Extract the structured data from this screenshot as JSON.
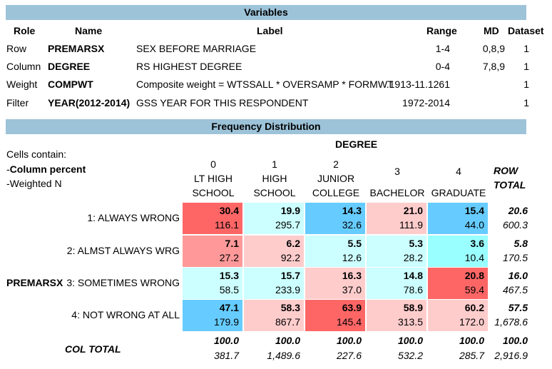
{
  "variables": {
    "title": "Variables",
    "headers": {
      "role": "Role",
      "name": "Name",
      "label": "Label",
      "range": "Range",
      "md": "MD",
      "dataset": "Dataset"
    },
    "rows": [
      {
        "role": "Row",
        "name": "PREMARSX",
        "label": "SEX BEFORE MARRIAGE",
        "range": "1-4",
        "md": "0,8,9",
        "dataset": "1"
      },
      {
        "role": "Column",
        "name": "DEGREE",
        "label": "RS HIGHEST DEGREE",
        "range": "0-4",
        "md": "7,8,9",
        "dataset": "1"
      },
      {
        "role": "Weight",
        "name": "COMPWT",
        "label": "Composite weight = WTSSALL * OVERSAMP * FORMWT",
        "range": ".1913-11.1261",
        "md": "",
        "dataset": "1"
      },
      {
        "role": "Filter",
        "name": "YEAR(2012-2014)",
        "label": "GSS YEAR FOR THIS RESPONDENT",
        "range": "1972-2014",
        "md": "",
        "dataset": "1"
      }
    ]
  },
  "freq": {
    "title": "Frequency Distribution",
    "cells_contain": "Cells contain:",
    "legend_1_dash": "-",
    "legend_1": "Column percent",
    "legend_2": "-Weighted N",
    "col_var": "DEGREE",
    "row_var": "PREMARSX",
    "columns": [
      {
        "code": "0",
        "l1": "LT HIGH",
        "l2": "SCHOOL"
      },
      {
        "code": "1",
        "l1": "HIGH",
        "l2": "SCHOOL"
      },
      {
        "code": "2",
        "l1": "JUNIOR",
        "l2": "COLLEGE"
      },
      {
        "code": "3",
        "l1": "",
        "l2": "BACHELOR"
      },
      {
        "code": "4",
        "l1": "",
        "l2": "GRADUATE"
      }
    ],
    "row_total_l1": "ROW",
    "row_total_l2": "TOTAL",
    "rows": [
      {
        "label": "1: ALWAYS WRONG",
        "cells": [
          {
            "pct": "30.4",
            "n": "116.1",
            "color": "#fe6666"
          },
          {
            "pct": "19.9",
            "n": "295.7",
            "color": "#ccffff"
          },
          {
            "pct": "14.3",
            "n": "32.6",
            "color": "#66ccff"
          },
          {
            "pct": "21.0",
            "n": "111.9",
            "color": "#ffcccc"
          },
          {
            "pct": "15.4",
            "n": "44.0",
            "color": "#66ccff"
          }
        ],
        "tot_pct": "20.6",
        "tot_n": "600.3"
      },
      {
        "label": "2: ALMST ALWAYS WRG",
        "cells": [
          {
            "pct": "7.1",
            "n": "27.2",
            "color": "#ff9999"
          },
          {
            "pct": "6.2",
            "n": "92.2",
            "color": "#ffcccc"
          },
          {
            "pct": "5.5",
            "n": "12.6",
            "color": "#ccffff"
          },
          {
            "pct": "5.3",
            "n": "28.2",
            "color": "#ccffff"
          },
          {
            "pct": "3.6",
            "n": "10.4",
            "color": "#99ffff"
          }
        ],
        "tot_pct": "5.8",
        "tot_n": "170.5"
      },
      {
        "label": "3: SOMETIMES WRONG",
        "cells": [
          {
            "pct": "15.3",
            "n": "58.5",
            "color": "#ccffff"
          },
          {
            "pct": "15.7",
            "n": "233.9",
            "color": "#ccffff"
          },
          {
            "pct": "16.3",
            "n": "37.0",
            "color": "#ffcccc"
          },
          {
            "pct": "14.8",
            "n": "78.6",
            "color": "#ccffff"
          },
          {
            "pct": "20.8",
            "n": "59.4",
            "color": "#fe6666"
          }
        ],
        "tot_pct": "16.0",
        "tot_n": "467.5"
      },
      {
        "label": "4: NOT WRONG AT ALL",
        "cells": [
          {
            "pct": "47.1",
            "n": "179.9",
            "color": "#66ccff"
          },
          {
            "pct": "58.3",
            "n": "867.7",
            "color": "#ffcccc"
          },
          {
            "pct": "63.9",
            "n": "145.4",
            "color": "#fe6666"
          },
          {
            "pct": "58.9",
            "n": "313.5",
            "color": "#ffcccc"
          },
          {
            "pct": "60.2",
            "n": "172.0",
            "color": "#ffcccc"
          }
        ],
        "tot_pct": "57.5",
        "tot_n": "1,678.6"
      }
    ],
    "col_total": {
      "label": "COL TOTAL",
      "cells": [
        {
          "pct": "100.0",
          "n": "381.7"
        },
        {
          "pct": "100.0",
          "n": "1,489.6"
        },
        {
          "pct": "100.0",
          "n": "227.6"
        },
        {
          "pct": "100.0",
          "n": "532.2"
        },
        {
          "pct": "100.0",
          "n": "285.7"
        }
      ],
      "tot_pct": "100.0",
      "tot_n": "2,916.9"
    }
  }
}
